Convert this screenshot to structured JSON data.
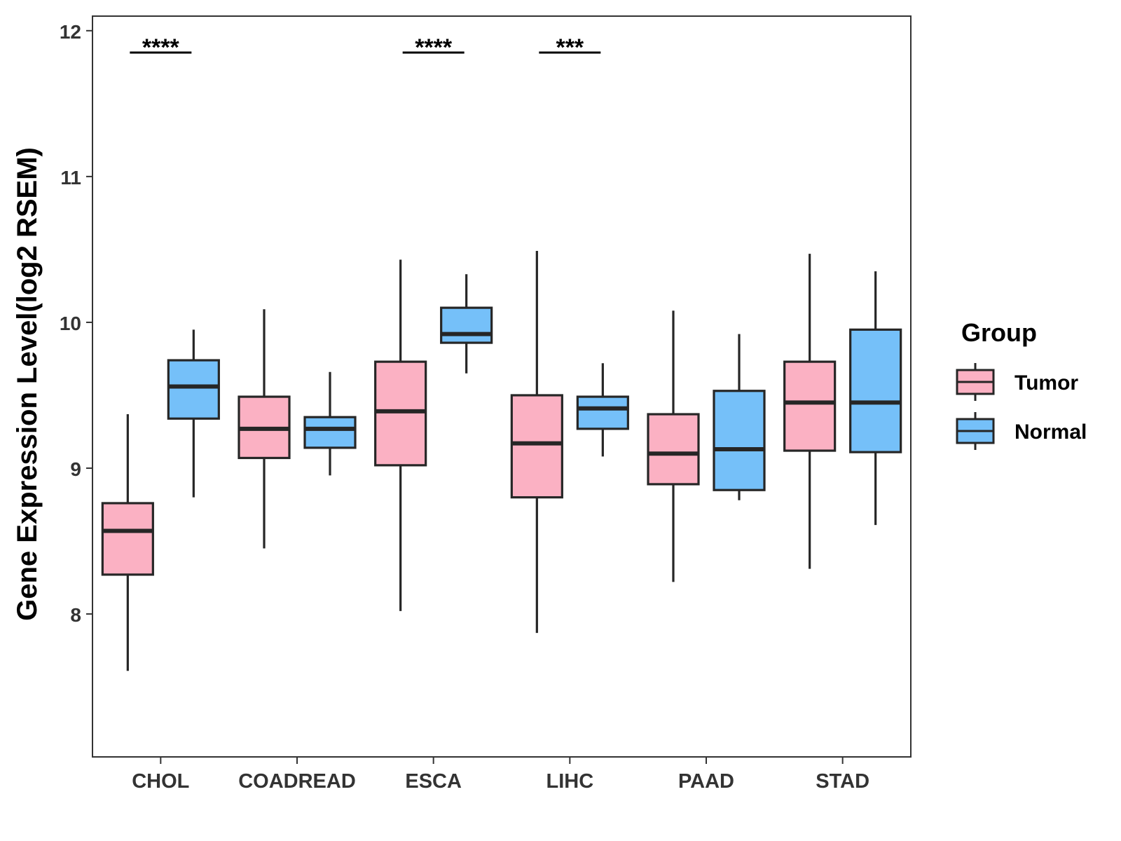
{
  "chart_data": {
    "type": "boxplot",
    "title": "",
    "xlabel": "",
    "ylabel": "Gene Expression Level(log2 RSEM)",
    "ylim": [
      7.02,
      12.1
    ],
    "yticks": [
      8,
      9,
      10,
      11,
      12
    ],
    "categories": [
      "CHOL",
      "COADREAD",
      "ESCA",
      "LIHC",
      "PAAD",
      "STAD"
    ],
    "legend": {
      "title": "Group",
      "position": "right"
    },
    "series": [
      {
        "name": "Tumor",
        "color": "#FBB1C3",
        "boxes": [
          {
            "category": "CHOL",
            "min": 7.61,
            "q1": 8.27,
            "median": 8.57,
            "q3": 8.76,
            "max": 9.37
          },
          {
            "category": "COADREAD",
            "min": 8.45,
            "q1": 9.07,
            "median": 9.27,
            "q3": 9.49,
            "max": 10.09
          },
          {
            "category": "ESCA",
            "min": 8.02,
            "q1": 9.02,
            "median": 9.39,
            "q3": 9.73,
            "max": 10.43
          },
          {
            "category": "LIHC",
            "min": 7.87,
            "q1": 8.8,
            "median": 9.17,
            "q3": 9.5,
            "max": 10.49
          },
          {
            "category": "PAAD",
            "min": 8.22,
            "q1": 8.89,
            "median": 9.1,
            "q3": 9.37,
            "max": 10.08
          },
          {
            "category": "STAD",
            "min": 8.31,
            "q1": 9.12,
            "median": 9.45,
            "q3": 9.73,
            "max": 10.47
          }
        ]
      },
      {
        "name": "Normal",
        "color": "#75C0F9",
        "boxes": [
          {
            "category": "CHOL",
            "min": 8.8,
            "q1": 9.34,
            "median": 9.56,
            "q3": 9.74,
            "max": 9.95
          },
          {
            "category": "COADREAD",
            "min": 8.95,
            "q1": 9.14,
            "median": 9.27,
            "q3": 9.35,
            "max": 9.66
          },
          {
            "category": "ESCA",
            "min": 9.65,
            "q1": 9.86,
            "median": 9.92,
            "q3": 10.1,
            "max": 10.33
          },
          {
            "category": "LIHC",
            "min": 9.08,
            "q1": 9.27,
            "median": 9.41,
            "q3": 9.49,
            "max": 9.72
          },
          {
            "category": "PAAD",
            "min": 8.78,
            "q1": 8.85,
            "median": 9.13,
            "q3": 9.53,
            "max": 9.92
          },
          {
            "category": "STAD",
            "min": 8.61,
            "q1": 9.11,
            "median": 9.45,
            "q3": 9.95,
            "max": 10.35
          }
        ]
      }
    ],
    "annotations": [
      {
        "category": "CHOL",
        "label": "****"
      },
      {
        "category": "ESCA",
        "label": "****"
      },
      {
        "category": "LIHC",
        "label": "***"
      }
    ]
  }
}
